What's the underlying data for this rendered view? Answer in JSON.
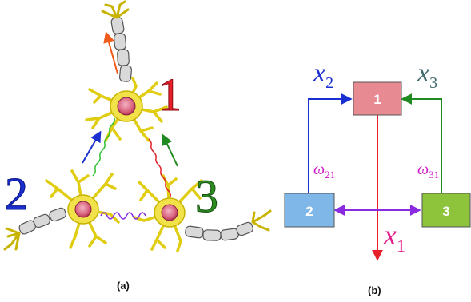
{
  "panel_a": {
    "caption": "(a)",
    "neuron_labels": {
      "n1": "1",
      "n2": "2",
      "n3": "3"
    },
    "colors": {
      "n1": "#e8202a",
      "n2": "#1a2fd0",
      "n3": "#2e8b22"
    }
  },
  "panel_b": {
    "caption": "(b)",
    "nodes": [
      {
        "id": "1",
        "color": "#e88a92"
      },
      {
        "id": "2",
        "color": "#7fb8e8"
      },
      {
        "id": "3",
        "color": "#8dc43c"
      }
    ],
    "labels": {
      "x2": {
        "sym": "x",
        "sub": "2",
        "color": "#1a2fd0"
      },
      "x3": {
        "sym": "x",
        "sub": "3",
        "color": "#3f6b6b"
      },
      "x1": {
        "sym": "x",
        "sub": "1",
        "color": "#e0208a"
      },
      "w21": {
        "sym": "ω",
        "sub": "21",
        "color": "#d020c8"
      },
      "w31": {
        "sym": "ω",
        "sub": "31",
        "color": "#d020c8"
      }
    }
  }
}
